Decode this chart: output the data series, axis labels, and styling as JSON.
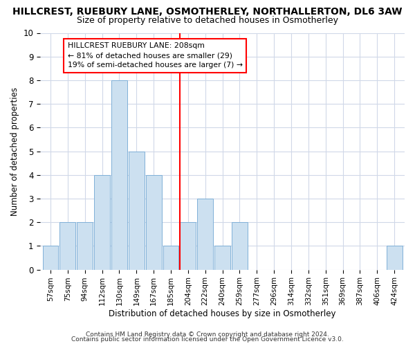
{
  "title_line1": "HILLCREST, RUEBURY LANE, OSMOTHERLEY, NORTHALLERTON, DL6 3AW",
  "title_line2": "Size of property relative to detached houses in Osmotherley",
  "xlabel": "Distribution of detached houses by size in Osmotherley",
  "ylabel": "Number of detached properties",
  "categories": [
    "57sqm",
    "75sqm",
    "94sqm",
    "112sqm",
    "130sqm",
    "149sqm",
    "167sqm",
    "185sqm",
    "204sqm",
    "222sqm",
    "240sqm",
    "259sqm",
    "277sqm",
    "296sqm",
    "314sqm",
    "332sqm",
    "351sqm",
    "369sqm",
    "387sqm",
    "406sqm",
    "424sqm"
  ],
  "values": [
    1,
    2,
    2,
    4,
    8,
    5,
    4,
    1,
    2,
    3,
    1,
    2,
    0,
    0,
    0,
    0,
    0,
    0,
    0,
    0,
    1
  ],
  "bar_color": "#cce0f0",
  "bar_edge_color": "#7fb0d8",
  "red_line_index": 8,
  "ylim": [
    0,
    10
  ],
  "yticks": [
    0,
    1,
    2,
    3,
    4,
    5,
    6,
    7,
    8,
    9,
    10
  ],
  "annotation_title": "HILLCREST RUEBURY LANE: 208sqm",
  "annotation_line2": "← 81% of detached houses are smaller (29)",
  "annotation_line3": "19% of semi-detached houses are larger (7) →",
  "footer_line1": "Contains HM Land Registry data © Crown copyright and database right 2024.",
  "footer_line2": "Contains public sector information licensed under the Open Government Licence v3.0.",
  "background_color": "#ffffff",
  "plot_background": "#ffffff",
  "grid_color": "#d0d8e8"
}
